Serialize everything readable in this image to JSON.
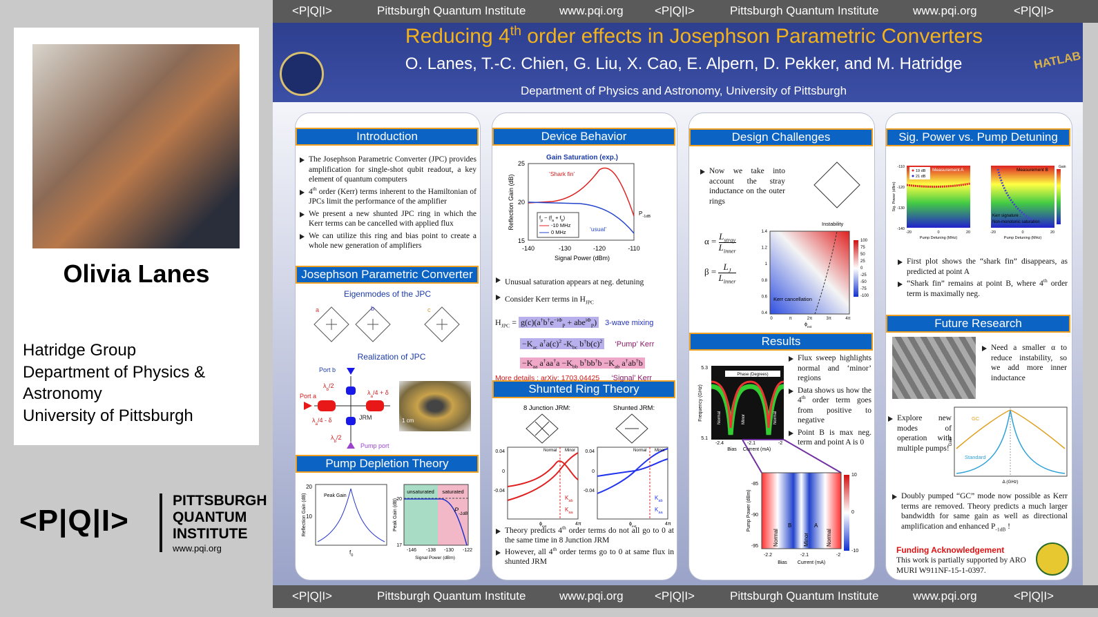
{
  "banner": {
    "logo": "<P|Q|I>",
    "name": "Pittsburgh Quantum Institute",
    "url": "www.pqi.org"
  },
  "speaker": {
    "name": "Olivia Lanes",
    "affiliation": [
      "Hatridge Group",
      "Department  of Physics &",
      "Astronomy",
      "University of Pittsburgh"
    ]
  },
  "pqi_logo": {
    "mark": "<P|Q|I>",
    "lines": [
      "PITTSBURGH",
      "QUANTUM",
      "INSTITUTE"
    ],
    "url": "www.pqi.org"
  },
  "header": {
    "title": [
      "Reducing 4",
      {
        "sup": "th"
      },
      " order effects in Josephson Parametric Converters"
    ],
    "authors": "O. Lanes, T.-C. Chien, G. Liu, X. Cao, E. Alpern, D. Pekker, and M. Hatridge",
    "department": "Department of Physics and Astronomy, University of Pittsburgh",
    "hatlab": "HATLAB"
  },
  "introduction": {
    "title": "Introduction",
    "bullets": [
      [
        "The Josephson Parametric Converter (JPC) provides amplification for single-shot qubit readout, a key element of quantum computers"
      ],
      [
        "4",
        {
          "sup": "th"
        },
        " order (Kerr) terms inherent to the Hamiltonian of JPCs limit the performance of the amplifier"
      ],
      [
        "We present a new shunted JPC ring in which the Kerr terms can be cancelled with applied flux"
      ],
      [
        "We can utilize this ring and bias point to create a whole new generation of amplifiers"
      ]
    ]
  },
  "jpc": {
    "title": "Josephson Parametric Converter",
    "eigenmodes": "Eigenmodes of the JPC",
    "modes": [
      "a",
      "b",
      "c"
    ],
    "realization": "Realization of JPC",
    "port_b": "Port b",
    "port_a": "Port a",
    "lambda_b": [
      "λ",
      {
        "sub": "b"
      },
      "/2"
    ],
    "lambda_a_plus": [
      "λ",
      {
        "sub": "a"
      },
      "/4 + δ"
    ],
    "lambda_a_minus": [
      "λ",
      {
        "sub": "a"
      },
      "/4 - δ"
    ],
    "jrm": "JRM",
    "scale": "1 cm",
    "pump_port": "Pump port"
  },
  "pump_depletion": {
    "title": "Pump Depletion Theory",
    "plot1": {
      "ylabel": "Reflection Gain (dB)",
      "yticks": [
        20,
        10
      ],
      "peak": "Peak Gain",
      "xlabel": [
        "f",
        {
          "sub": "0"
        }
      ]
    },
    "plot2": {
      "ylabel": "Peak Gain (dB)",
      "yticks": [
        20,
        17
      ],
      "xticks": [
        -146,
        -138,
        -130,
        -122
      ],
      "xlabel": "Signal Power (dBm)",
      "unsaturated": "unsaturated",
      "saturated": "saturated",
      "p1db": [
        "P",
        {
          "sub": "-1dB"
        }
      ]
    }
  },
  "device": {
    "title": "Device Behavior",
    "plot": {
      "title": "Gain Saturation (exp.)",
      "ylabel": "Reflection Gain (dB)",
      "yticks": [
        25,
        20,
        15
      ],
      "xticks": [
        -140,
        -130,
        -120,
        -110
      ],
      "xlabel": "Signal Power (dBm)",
      "shark": "‘Shark fin’",
      "usual": "‘usual’",
      "p1db": [
        "P",
        {
          "sub": "-1dB"
        }
      ],
      "legend_title": [
        "f",
        {
          "sub": "p"
        },
        " − (f",
        {
          "sub": "a"
        },
        " + f",
        {
          "sub": "b"
        },
        ")"
      ],
      "legend": [
        "-10 MHz",
        "0 MHz"
      ]
    },
    "bullets": [
      [
        "Unusual saturation appears at neg.  detuning"
      ],
      [
        "Consider Kerr terms in H",
        {
          "sub": "JPC"
        }
      ]
    ],
    "eq_lhs": [
      "H",
      {
        "sub": "JPC"
      },
      " = "
    ],
    "eq1": [
      "g(c)(a",
      {
        "sup": "†"
      },
      "b",
      {
        "sup": "†"
      },
      "e",
      {
        "sup": "−iΦ"
      },
      "",
      {
        "sub": "P"
      },
      " + abe",
      {
        "sup": "iΦ"
      },
      "",
      {
        "sub": "P"
      },
      ")"
    ],
    "eq2": [
      "−K",
      {
        "sub": "ac"
      },
      " a",
      {
        "sup": "†"
      },
      "a(c)",
      {
        "sup": "2"
      },
      " -K",
      {
        "sub": "bc"
      },
      " b",
      {
        "sup": "†"
      },
      "b(c)",
      {
        "sup": "2"
      }
    ],
    "eq3": [
      "−K",
      {
        "sub": "aa"
      },
      " a",
      {
        "sup": "†"
      },
      "aa",
      {
        "sup": "†"
      },
      "a −K",
      {
        "sub": "bb"
      },
      " b",
      {
        "sup": "†"
      },
      "bb",
      {
        "sup": "†"
      },
      "b −K",
      {
        "sub": "ab"
      },
      " a",
      {
        "sup": "†"
      },
      "ab",
      {
        "sup": "†"
      },
      "b"
    ],
    "eq_labels": [
      "3-wave mixing",
      "‘Pump’ Kerr",
      "‘Signal’ Kerr"
    ],
    "details": "More details : arXiv: 1703.04425"
  },
  "shunted": {
    "title": "Shunted Ring Theory",
    "label1": "8 Junction JRM:",
    "label2": "Shunted JRM:",
    "yticks": [
      0.04,
      0,
      -0.04
    ],
    "normal": "Normal",
    "minor": "Minor",
    "xlabel": [
      "ϕ",
      {
        "sub": "ext"
      }
    ],
    "xend": "4π",
    "legend": [
      [
        "K",
        {
          "sub": "ab"
        }
      ],
      [
        "K",
        {
          "sub": "aa"
        }
      ]
    ],
    "bullets": [
      [
        "Theory predicts 4",
        {
          "sup": "th"
        },
        " order terms do not all go to 0 at the same time in 8 Junction JRM"
      ],
      [
        "However, all 4",
        {
          "sup": "th"
        },
        " order terms go to 0 at same flux in shunted JRM"
      ]
    ]
  },
  "design": {
    "title": "Design Challenges",
    "bullets": [
      [
        "Now we take into account the stray inductance on the outer rings"
      ]
    ],
    "alpha": "α =",
    "alpha_num": [
      "L",
      {
        "sub": "stray"
      }
    ],
    "alpha_den": [
      "L",
      {
        "sub": "inner"
      }
    ],
    "beta": "β =",
    "beta_num": [
      "L",
      {
        "sub": "J"
      }
    ],
    "beta_den": [
      "L",
      {
        "sub": "inner"
      }
    ],
    "plot": {
      "yticks": [
        1.4,
        1.2,
        1.0,
        0.8,
        0.6,
        0.4
      ],
      "xticks": [
        0,
        "π",
        "2π",
        "3π",
        "4π"
      ],
      "xlabel": [
        "ϕ",
        {
          "sub": "ext"
        }
      ],
      "instability": "Instability",
      "kerr": "Kerr cancellation",
      "cticks": [
        100,
        75,
        50,
        25,
        0,
        -25,
        -50,
        -75,
        -100
      ]
    }
  },
  "results": {
    "title": "Results",
    "bullets": [
      [
        "Flux sweep highlights normal and ‘minor’ regions"
      ],
      [
        "Data shows us how the 4",
        {
          "sup": "th"
        },
        " order term goes from positive to negative"
      ],
      [
        "Point B is max neg. term and point A is 0"
      ]
    ],
    "plot1": {
      "yticks": [
        5.3,
        5.1
      ],
      "xticks": [
        -2.4,
        -2.1,
        -2.0
      ],
      "ylabel": "Frequency (GHz)",
      "bias": "Bias",
      "current": "Current (mA)",
      "phase": "Phase (Degrees)",
      "regions": [
        "Normal",
        "Minor",
        "Normal"
      ]
    },
    "plot2": {
      "yticks": [
        -85,
        -90,
        -95
      ],
      "xticks": [
        -2.2,
        -2.1,
        -2.0
      ],
      "ylabel": "Pump Power (dBm)",
      "bias": "Bias",
      "current": "Current (mA)",
      "regions": [
        "Normal",
        "B",
        "Minor",
        "A",
        "Normal"
      ],
      "cticks": [
        10,
        0,
        -10
      ]
    }
  },
  "sig_power": {
    "title": "Sig. Power vs. Pump Detuning",
    "meas_a": "Measurement A",
    "meas_b": "Measurement B",
    "legend": [
      "19 dB",
      "21 dB"
    ],
    "yticks": [
      -110,
      -120,
      -130,
      -140
    ],
    "xticks": [
      -20,
      0,
      20
    ],
    "xlabel": "Pump Detuning (MHz)",
    "ylabel": "Sig. Power (dBm)",
    "kerr": "Kerr signature :",
    "kerr2": "Non-monotonic saturation",
    "gain": "Gain",
    "bullets": [
      [
        "First plot shows the “shark fin” disappears, as predicted at point A"
      ],
      [
        "“Shark fin” remains at point B, where 4",
        {
          "sup": "th"
        },
        " order term is maximally neg."
      ]
    ]
  },
  "future": {
    "title": "Future Research",
    "bullet1": [
      [
        "Need a smaller α to reduce instability, so we add more inner inductance"
      ]
    ],
    "bullet2": [
      [
        "Explore new modes of operation with multiple pumps!"
      ]
    ],
    "plot": {
      "gc": "GC",
      "standard": "Standard",
      "ylabel": "Gain",
      "xlabel": "Δ (GHz)"
    },
    "bullet3": [
      [
        "Doubly pumped “GC” mode now possible as Kerr terms are removed.  Theory predicts a much larger bandwidth for same gain as well as directional amplification and enhanced P",
        {
          "sub": "-1dB"
        },
        " !"
      ]
    ],
    "funding_title": "Funding Acknowledgement",
    "funding": "This work is partially supported by ARO MURI W911NF-15-1-0397."
  }
}
